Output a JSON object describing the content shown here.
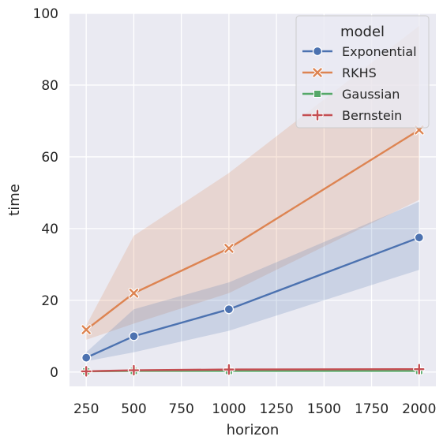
{
  "chart_data": {
    "type": "line",
    "xlabel": "horizon",
    "ylabel": "time",
    "x": [
      250,
      500,
      1000,
      2000
    ],
    "xlim": [
      250,
      2000
    ],
    "xticks": [
      250,
      500,
      750,
      1000,
      1250,
      1500,
      1750,
      2000
    ],
    "ylim": [
      0,
      100
    ],
    "yticks": [
      0,
      20,
      40,
      60,
      80,
      100
    ],
    "grid": true,
    "legend": {
      "title": "model",
      "position": "top-right"
    },
    "series": [
      {
        "name": "Exponential",
        "color": "#4c72b0",
        "marker": "circle",
        "values": [
          4.0,
          10.0,
          17.5,
          37.5
        ],
        "ci_low": [
          3.0,
          5.5,
          11.5,
          28.5
        ],
        "ci_high": [
          5.5,
          17.5,
          25.0,
          47.5
        ]
      },
      {
        "name": "RKHS",
        "color": "#dd8452",
        "marker": "x",
        "values": [
          11.8,
          22.0,
          34.5,
          67.5
        ],
        "ci_low": [
          9.0,
          13.5,
          22.0,
          48.0
        ],
        "ci_high": [
          13.0,
          38.0,
          55.5,
          96.5
        ]
      },
      {
        "name": "Gaussian",
        "color": "#55a868",
        "marker": "square",
        "values": [
          0.2,
          0.3,
          0.3,
          0.3
        ],
        "ci_low": [
          0.1,
          0.2,
          0.2,
          0.2
        ],
        "ci_high": [
          0.3,
          0.4,
          0.4,
          0.4
        ]
      },
      {
        "name": "Bernstein",
        "color": "#c44e52",
        "marker": "plus",
        "values": [
          0.2,
          0.5,
          0.7,
          0.8
        ],
        "ci_low": [
          0.1,
          0.3,
          0.5,
          0.6
        ],
        "ci_high": [
          0.3,
          0.7,
          0.9,
          1.0
        ]
      }
    ]
  }
}
